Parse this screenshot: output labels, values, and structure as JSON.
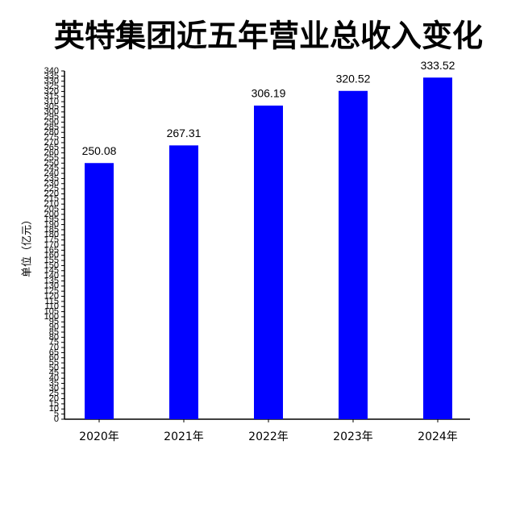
{
  "chart_data": {
    "type": "bar",
    "title": "英特集团近五年营业总收入变化",
    "y_label": "单位（亿元）",
    "categories": [
      "2020年",
      "2021年",
      "2022年",
      "2023年",
      "2024年"
    ],
    "values": [
      250.08,
      267.31,
      306.19,
      320.52,
      333.52
    ],
    "color": "#0000ff",
    "ylim": [
      0,
      340
    ],
    "yticks": [
      0,
      5,
      10,
      15,
      20,
      25,
      30,
      35,
      40,
      45,
      50,
      55,
      60,
      65,
      70,
      75,
      80,
      85,
      90,
      95,
      100,
      105,
      110,
      115,
      120,
      125,
      130,
      135,
      140,
      145,
      150,
      155,
      160,
      165,
      170,
      175,
      180,
      185,
      190,
      195,
      200,
      205,
      210,
      215,
      220,
      225,
      230,
      235,
      240,
      245,
      250,
      255,
      260,
      265,
      270,
      275,
      280,
      285,
      290,
      295,
      300,
      305,
      310,
      315,
      320,
      325,
      330,
      335,
      340
    ],
    "grid": false
  }
}
